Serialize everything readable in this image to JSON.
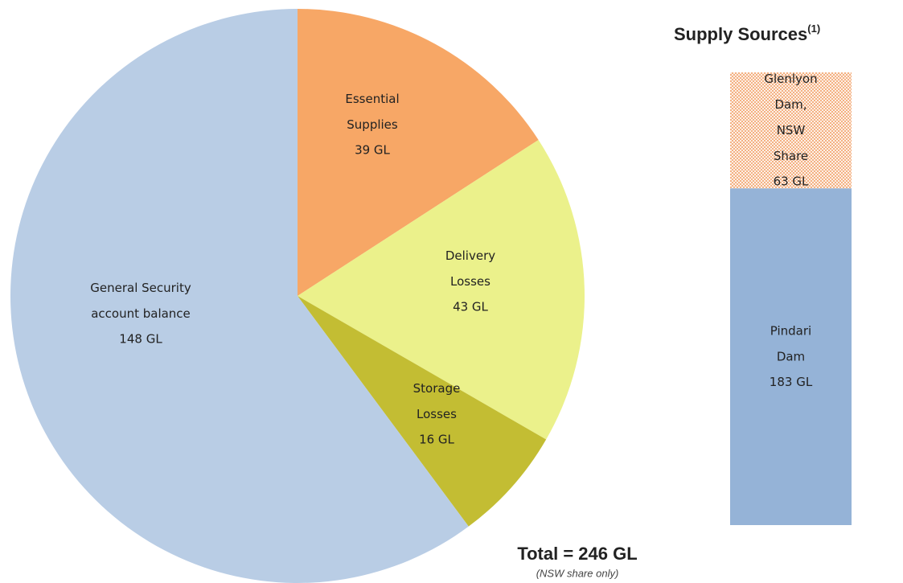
{
  "chart_data": [
    {
      "type": "pie",
      "categories": [
        "Essential\nSupplies",
        "Delivery\nLosses",
        "Storage\nLosses",
        "General Security\naccount balance"
      ],
      "values": [
        39,
        43,
        16,
        148
      ],
      "value_labels": [
        "39 GL",
        "43 GL",
        "16 GL",
        "148 GL"
      ],
      "colors": [
        "#f7a766",
        "#ebf18b",
        "#c3bd33",
        "#b9cde5"
      ],
      "annotation": "Total = 246 GL",
      "note": "(NSW share only)"
    },
    {
      "type": "bar",
      "title": "Supply Sources",
      "title_note": "(1)",
      "categories": [
        null
      ],
      "series": [
        {
          "name": "Pindari\nDam",
          "color": "#95b3d7",
          "values": [
            183
          ],
          "value_labels": [
            "183 GL"
          ]
        },
        {
          "name": "Glenlyon\nDam,\nNSW\nShare",
          "color": "#f4b183",
          "pattern": "dots",
          "values": [
            63
          ],
          "value_labels": [
            "63 GL"
          ]
        }
      ]
    }
  ]
}
